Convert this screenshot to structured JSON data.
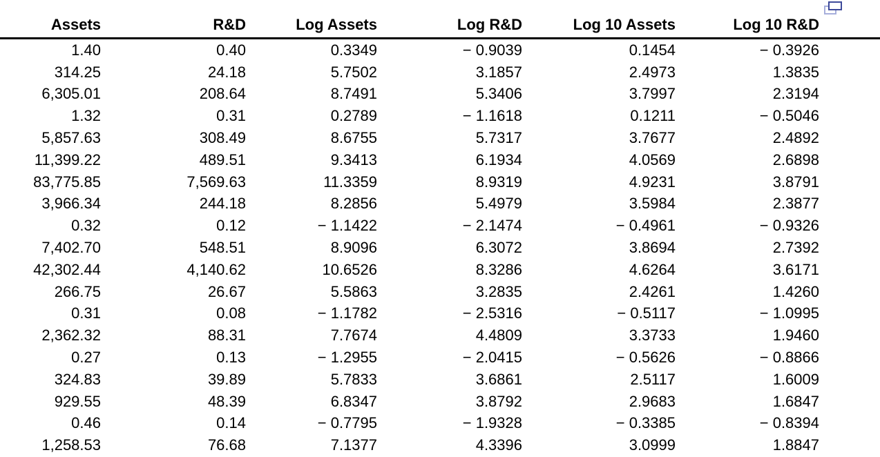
{
  "icon": {
    "name": "copy-icon",
    "dark_color": "#3d4a9a",
    "light_color": "#a6aedb"
  },
  "table": {
    "columns": [
      "Assets",
      "R&D",
      "Log Assets",
      "Log R&D",
      "Log 10 Assets",
      "Log 10 R&D"
    ],
    "rows": [
      [
        "1.40",
        "0.40",
        "0.3349",
        "− 0.9039",
        "0.1454",
        "− 0.3926"
      ],
      [
        "314.25",
        "24.18",
        "5.7502",
        "3.1857",
        "2.4973",
        "1.3835"
      ],
      [
        "6,305.01",
        "208.64",
        "8.7491",
        "5.3406",
        "3.7997",
        "2.3194"
      ],
      [
        "1.32",
        "0.31",
        "0.2789",
        "− 1.1618",
        "0.1211",
        "− 0.5046"
      ],
      [
        "5,857.63",
        "308.49",
        "8.6755",
        "5.7317",
        "3.7677",
        "2.4892"
      ],
      [
        "11,399.22",
        "489.51",
        "9.3413",
        "6.1934",
        "4.0569",
        "2.6898"
      ],
      [
        "83,775.85",
        "7,569.63",
        "11.3359",
        "8.9319",
        "4.9231",
        "3.8791"
      ],
      [
        "3,966.34",
        "244.18",
        "8.2856",
        "5.4979",
        "3.5984",
        "2.3877"
      ],
      [
        "0.32",
        "0.12",
        "− 1.1422",
        "− 2.1474",
        "− 0.4961",
        "− 0.9326"
      ],
      [
        "7,402.70",
        "548.51",
        "8.9096",
        "6.3072",
        "3.8694",
        "2.7392"
      ],
      [
        "42,302.44",
        "4,140.62",
        "10.6526",
        "8.3286",
        "4.6264",
        "3.6171"
      ],
      [
        "266.75",
        "26.67",
        "5.5863",
        "3.2835",
        "2.4261",
        "1.4260"
      ],
      [
        "0.31",
        "0.08",
        "− 1.1782",
        "− 2.5316",
        "− 0.5117",
        "− 1.0995"
      ],
      [
        "2,362.32",
        "88.31",
        "7.7674",
        "4.4809",
        "3.3733",
        "1.9460"
      ],
      [
        "0.27",
        "0.13",
        "− 1.2955",
        "− 2.0415",
        "− 0.5626",
        "− 0.8866"
      ],
      [
        "324.83",
        "39.89",
        "5.7833",
        "3.6861",
        "2.5117",
        "1.6009"
      ],
      [
        "929.55",
        "48.39",
        "6.8347",
        "3.8792",
        "2.9683",
        "1.6847"
      ],
      [
        "0.46",
        "0.14",
        "− 0.7795",
        "− 1.9328",
        "− 0.3385",
        "− 0.8394"
      ],
      [
        "1,258.53",
        "76.68",
        "7.1377",
        "4.3396",
        "3.0999",
        "1.8847"
      ]
    ]
  }
}
